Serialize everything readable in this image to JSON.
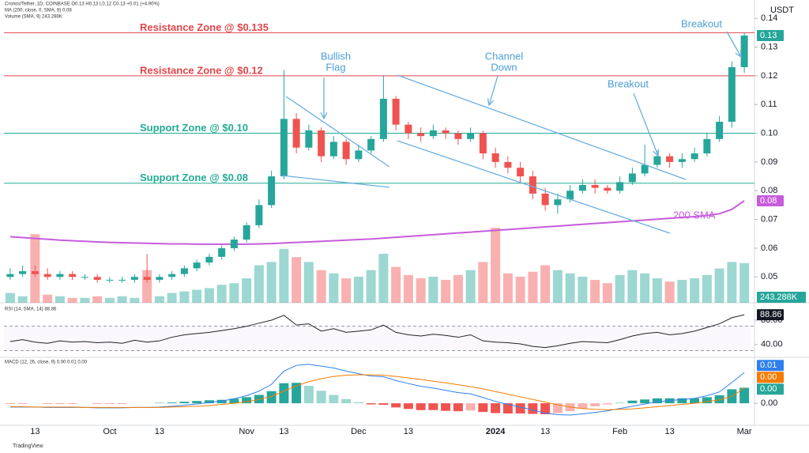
{
  "chart_data": [
    {
      "type": "candlestick",
      "title": "Cronos/Tether, 1D, COINBASE  O0.13 H0.13 L0.12 C0.13 +0.01 (+4.90%)",
      "subtitle": "MA (200, close, 0, SMA, 9)  0.08",
      "volume_title": "Volume (SMA, 9)  243.288K",
      "currency": "USDT",
      "watermark": "TradingView",
      "categories": [
        null,
        null,
        "13",
        null,
        null,
        null,
        null,
        null,
        "Oct",
        null,
        null,
        null,
        "13",
        null,
        null,
        null,
        null,
        null,
        null,
        "Nov",
        null,
        null,
        "13",
        null,
        null,
        null,
        null,
        null,
        "Dec",
        null,
        null,
        null,
        "13",
        null,
        null,
        null,
        null,
        null,
        null,
        "2024",
        null,
        null,
        null,
        "13",
        null,
        null,
        null,
        null,
        null,
        "Feb",
        null,
        null,
        null,
        "13",
        null,
        null,
        null,
        null,
        null,
        "Mar"
      ],
      "open": [
        0.05,
        0.051,
        0.052,
        0.051,
        0.05,
        0.051,
        0.05,
        0.05,
        0.049,
        0.049,
        0.049,
        0.05,
        0.049,
        0.05,
        0.051,
        0.053,
        0.055,
        0.057,
        0.06,
        0.063,
        0.068,
        0.075,
        0.085,
        0.105,
        0.095,
        0.101,
        0.092,
        0.097,
        0.091,
        0.094,
        0.098,
        0.112,
        0.103,
        0.1,
        0.099,
        0.101,
        0.1,
        0.098,
        0.1,
        0.093,
        0.09,
        0.088,
        0.085,
        0.079,
        0.075,
        0.077,
        0.08,
        0.082,
        0.081,
        0.08,
        0.083,
        0.086,
        0.089,
        0.092,
        0.09,
        0.091,
        0.093,
        0.098,
        0.104,
        0.123
      ],
      "high": [
        0.053,
        0.054,
        0.054,
        0.053,
        0.052,
        0.052,
        0.051,
        0.051,
        0.05,
        0.05,
        0.051,
        0.058,
        0.051,
        0.052,
        0.054,
        0.056,
        0.058,
        0.061,
        0.064,
        0.069,
        0.077,
        0.087,
        0.122,
        0.107,
        0.103,
        0.102,
        0.099,
        0.098,
        0.096,
        0.099,
        0.12,
        0.113,
        0.104,
        0.102,
        0.103,
        0.102,
        0.101,
        0.102,
        0.101,
        0.095,
        0.092,
        0.09,
        0.087,
        0.081,
        0.079,
        0.082,
        0.084,
        0.084,
        0.082,
        0.085,
        0.088,
        0.096,
        0.094,
        0.093,
        0.093,
        0.095,
        0.1,
        0.106,
        0.125,
        0.135
      ],
      "low": [
        0.049,
        0.05,
        0.05,
        0.049,
        0.049,
        0.049,
        0.049,
        0.048,
        0.048,
        0.048,
        0.048,
        0.048,
        0.048,
        0.049,
        0.05,
        0.052,
        0.054,
        0.056,
        0.059,
        0.062,
        0.067,
        0.074,
        0.084,
        0.093,
        0.094,
        0.09,
        0.091,
        0.089,
        0.09,
        0.093,
        0.097,
        0.101,
        0.098,
        0.097,
        0.098,
        0.098,
        0.096,
        0.097,
        0.091,
        0.088,
        0.086,
        0.083,
        0.077,
        0.073,
        0.072,
        0.076,
        0.079,
        0.079,
        0.079,
        0.079,
        0.082,
        0.085,
        0.088,
        0.088,
        0.088,
        0.09,
        0.092,
        0.097,
        0.102,
        0.121
      ],
      "close": [
        0.051,
        0.052,
        0.051,
        0.05,
        0.051,
        0.05,
        0.05,
        0.049,
        0.049,
        0.049,
        0.05,
        0.049,
        0.05,
        0.051,
        0.053,
        0.055,
        0.057,
        0.06,
        0.063,
        0.068,
        0.075,
        0.085,
        0.105,
        0.095,
        0.101,
        0.092,
        0.097,
        0.091,
        0.094,
        0.098,
        0.112,
        0.103,
        0.1,
        0.099,
        0.101,
        0.1,
        0.098,
        0.1,
        0.093,
        0.09,
        0.088,
        0.085,
        0.079,
        0.075,
        0.077,
        0.08,
        0.082,
        0.081,
        0.08,
        0.083,
        0.086,
        0.089,
        0.092,
        0.09,
        0.091,
        0.093,
        0.098,
        0.104,
        0.123,
        0.134
      ],
      "last_label": "0.13",
      "up_color": "#26a69a",
      "down_color": "#ef5350",
      "volume": {
        "values": [
          60,
          40,
          420,
          50,
          40,
          30,
          30,
          40,
          30,
          40,
          30,
          200,
          40,
          60,
          70,
          80,
          90,
          110,
          120,
          150,
          230,
          250,
          330,
          280,
          250,
          200,
          180,
          150,
          160,
          200,
          300,
          220,
          170,
          150,
          160,
          140,
          170,
          200,
          250,
          460,
          180,
          160,
          190,
          230,
          200,
          180,
          160,
          140,
          120,
          170,
          200,
          180,
          150,
          130,
          140,
          150,
          170,
          210,
          250,
          243.288
        ],
        "last_label": "243.288K"
      },
      "sma": {
        "name": "200 SMA",
        "color": "#c75cdb",
        "last_label": "0.08",
        "values": [
          0.064,
          0.0637,
          0.0634,
          0.0631,
          0.0628,
          0.0626,
          0.0624,
          0.0622,
          0.062,
          0.0619,
          0.0618,
          0.0617,
          0.0616,
          0.0615,
          0.0615,
          0.0614,
          0.0614,
          0.0614,
          0.0614,
          0.0614,
          0.0615,
          0.0616,
          0.0618,
          0.062,
          0.0622,
          0.0624,
          0.0626,
          0.0628,
          0.063,
          0.0632,
          0.0635,
          0.0638,
          0.0641,
          0.0644,
          0.0647,
          0.065,
          0.0653,
          0.0656,
          0.0659,
          0.0662,
          0.0665,
          0.0668,
          0.0671,
          0.0674,
          0.0677,
          0.068,
          0.0683,
          0.0686,
          0.0689,
          0.0692,
          0.0695,
          0.0698,
          0.0701,
          0.0704,
          0.0707,
          0.071,
          0.0714,
          0.072,
          0.0735,
          0.0765
        ]
      },
      "zones": [
        {
          "label": "Resistance Zone @ $0.135",
          "value": 0.135,
          "color": "#e0464b"
        },
        {
          "label": "Resistance Zone @ $0.12",
          "value": 0.12,
          "color": "#e0464b"
        },
        {
          "label": "Support Zone @ $0.10",
          "value": 0.1,
          "color": "#22ab94"
        },
        {
          "label": "Support Zone @ $0.08",
          "value": 0.0826,
          "color": "#22ab94"
        }
      ],
      "annotations": {
        "flag": [
          "Bullish",
          "Flag"
        ],
        "channel": [
          "Channel",
          "Down"
        ],
        "breakout_1": "Breakout",
        "breakout_2": "Breakout"
      },
      "ylim": [
        0.041,
        0.145
      ],
      "yticks": [
        0.05,
        0.06,
        0.07,
        0.08,
        0.09,
        {
          "value": 0.1,
          "label": "0.10"
        },
        0.11,
        0.12,
        0.13,
        0.14
      ],
      "grid": false
    },
    {
      "type": "line",
      "title": "RSI (14, SMA, 14)  88.86",
      "values": [
        45,
        48,
        44,
        42,
        46,
        44,
        45,
        43,
        44,
        42,
        47,
        44,
        46,
        52,
        56,
        58,
        60,
        63,
        66,
        70,
        75,
        80,
        88,
        72,
        74,
        62,
        66,
        60,
        62,
        64,
        72,
        60,
        56,
        54,
        57,
        55,
        52,
        56,
        46,
        44,
        43,
        41,
        37,
        35,
        38,
        42,
        45,
        44,
        43,
        48,
        54,
        58,
        60,
        56,
        58,
        62,
        68,
        74,
        84,
        88.86
      ],
      "last_label": "88.86",
      "color": "#222222",
      "levels": [
        70,
        30
      ],
      "ylim": [
        19,
        102
      ],
      "yticks": [
        {
          "value": 80,
          "label": "80.00"
        },
        {
          "value": 40,
          "label": "40.00"
        }
      ]
    },
    {
      "type": "macd",
      "title": "MACD (12, 26, close, 9)  0.00  0.01  0.00",
      "macd": {
        "color": "#2f80ed",
        "last_label": "0.01",
        "values": [
          -0.001,
          -0.001,
          -0.001,
          -0.0011,
          -0.0011,
          -0.0011,
          -0.0011,
          -0.0012,
          -0.0012,
          -0.0012,
          -0.0011,
          -0.0011,
          -0.001,
          -0.0008,
          -0.0005,
          -0.0002,
          0.0002,
          0.0006,
          0.0012,
          0.002,
          0.0032,
          0.005,
          0.0085,
          0.01,
          0.0103,
          0.0098,
          0.0093,
          0.0085,
          0.0078,
          0.0072,
          0.007,
          0.006,
          0.0052,
          0.0045,
          0.004,
          0.0034,
          0.0028,
          0.0025,
          0.0015,
          0.0005,
          -0.0003,
          -0.001,
          -0.0018,
          -0.0026,
          -0.003,
          -0.0031,
          -0.0028,
          -0.0024,
          -0.002,
          -0.0014,
          -0.0008,
          -0.0002,
          0.0004,
          0.0007,
          0.001,
          0.0013,
          0.002,
          0.003,
          0.0055,
          0.0081
        ]
      },
      "signal": {
        "color": "#f57c00",
        "last_label": "0.00",
        "values": [
          -0.0009,
          -0.0009,
          -0.001,
          -0.001,
          -0.001,
          -0.001,
          -0.0011,
          -0.0011,
          -0.0011,
          -0.0011,
          -0.0011,
          -0.0011,
          -0.0011,
          -0.001,
          -0.0009,
          -0.0008,
          -0.0006,
          -0.0003,
          0.0,
          0.0004,
          0.001,
          0.0018,
          0.0032,
          0.0046,
          0.0057,
          0.0065,
          0.0071,
          0.0074,
          0.0075,
          0.0075,
          0.0074,
          0.0071,
          0.0067,
          0.0063,
          0.0058,
          0.0054,
          0.0049,
          0.0044,
          0.0038,
          0.0031,
          0.0024,
          0.0017,
          0.001,
          0.0003,
          -0.0004,
          -0.001,
          -0.0014,
          -0.0016,
          -0.0017,
          -0.0016,
          -0.0015,
          -0.0012,
          -0.0009,
          -0.0006,
          -0.0003,
          0.0,
          0.0004,
          0.0009,
          0.0018,
          0.004
        ]
      },
      "histogram": {
        "up_color": "#26a69a",
        "down_color": "#ef5350",
        "last_label": "0.00",
        "values": [
          -0.0001,
          -0.0001,
          0.0,
          -0.0001,
          -0.0001,
          -0.0001,
          0.0,
          -0.0001,
          -0.0001,
          -0.0001,
          0.0,
          0.0,
          0.0001,
          0.0002,
          0.0004,
          0.0006,
          0.0008,
          0.0009,
          0.0012,
          0.0016,
          0.0022,
          0.0032,
          0.0053,
          0.0054,
          0.0046,
          0.0033,
          0.0022,
          0.0011,
          0.0003,
          -0.0003,
          -0.0004,
          -0.0011,
          -0.0015,
          -0.0018,
          -0.0018,
          -0.002,
          -0.0021,
          -0.0019,
          -0.0023,
          -0.0026,
          -0.0027,
          -0.0027,
          -0.0028,
          -0.0029,
          -0.0026,
          -0.0021,
          -0.0014,
          -0.0008,
          -0.0003,
          0.0002,
          0.0007,
          0.001,
          0.0013,
          0.0013,
          0.0013,
          0.0013,
          0.0016,
          0.0021,
          0.0037,
          0.0041
        ]
      },
      "ylim": [
        -0.0052,
        0.0115
      ],
      "yticks": [
        {
          "value": 0,
          "label": "0.00"
        }
      ]
    }
  ]
}
